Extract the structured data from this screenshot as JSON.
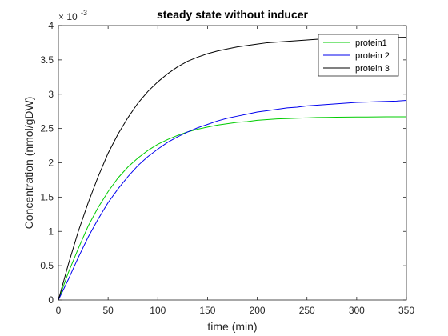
{
  "chart_data": {
    "type": "line",
    "title": "steady state without inducer",
    "xlabel": "time (min)",
    "ylabel": "Concentration (nmol/gDW)",
    "exponent_label": "× 10",
    "exponent_power": "-3",
    "xlim": [
      0,
      350
    ],
    "ylim": [
      0,
      4
    ],
    "x_ticks": [
      "0",
      "50",
      "100",
      "150",
      "200",
      "250",
      "300",
      "350"
    ],
    "y_ticks": [
      "0",
      "0.5",
      "1",
      "1.5",
      "2",
      "2.5",
      "3",
      "3.5",
      "4"
    ],
    "legend_position": "top-right",
    "grid": false,
    "x": [
      0,
      10,
      20,
      30,
      40,
      50,
      60,
      70,
      80,
      90,
      100,
      110,
      120,
      130,
      140,
      150,
      160,
      170,
      180,
      190,
      200,
      210,
      220,
      230,
      240,
      250,
      260,
      270,
      280,
      290,
      300,
      310,
      320,
      330,
      340,
      350
    ],
    "series": [
      {
        "name": "protein1",
        "color": "#00cc00",
        "values": [
          0,
          0.4,
          0.75,
          1.08,
          1.35,
          1.58,
          1.78,
          1.94,
          2.07,
          2.18,
          2.27,
          2.34,
          2.4,
          2.45,
          2.49,
          2.52,
          2.55,
          2.57,
          2.59,
          2.6,
          2.62,
          2.63,
          2.64,
          2.645,
          2.65,
          2.655,
          2.66,
          2.662,
          2.664,
          2.666,
          2.667,
          2.668,
          2.669,
          2.67,
          2.67,
          2.67
        ]
      },
      {
        "name": "protein 2",
        "color": "#0000ee",
        "values": [
          0,
          0.3,
          0.62,
          0.92,
          1.18,
          1.42,
          1.62,
          1.8,
          1.96,
          2.09,
          2.2,
          2.3,
          2.38,
          2.45,
          2.51,
          2.56,
          2.61,
          2.65,
          2.68,
          2.71,
          2.74,
          2.76,
          2.78,
          2.8,
          2.81,
          2.83,
          2.84,
          2.85,
          2.86,
          2.87,
          2.88,
          2.885,
          2.89,
          2.895,
          2.9,
          2.91
        ]
      },
      {
        "name": "protein 3",
        "color": "#000000",
        "values": [
          0,
          0.52,
          1.0,
          1.42,
          1.8,
          2.14,
          2.42,
          2.66,
          2.87,
          3.04,
          3.18,
          3.3,
          3.4,
          3.48,
          3.54,
          3.59,
          3.63,
          3.66,
          3.69,
          3.71,
          3.73,
          3.75,
          3.76,
          3.77,
          3.78,
          3.79,
          3.8,
          3.805,
          3.81,
          3.815,
          3.82,
          3.822,
          3.824,
          3.826,
          3.828,
          3.83
        ]
      }
    ]
  }
}
